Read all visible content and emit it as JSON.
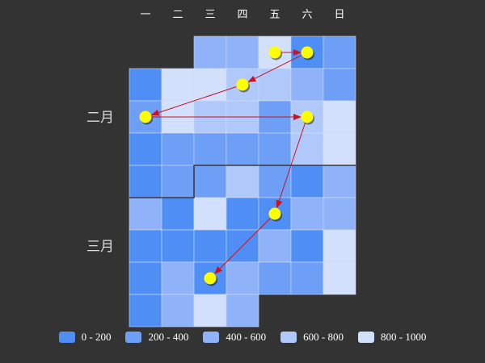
{
  "chart_data": {
    "type": "heatmap",
    "subtype": "calendar",
    "weekdays": [
      "一",
      "二",
      "三",
      "四",
      "五",
      "六",
      "日"
    ],
    "month_labels": [
      {
        "label": "二月",
        "week": 2
      },
      {
        "label": "三月",
        "week": 6
      }
    ],
    "start_weekday_index": 2,
    "weeks": 9,
    "values": [
      460,
      430,
      880,
      120,
      240,
      120,
      820,
      820,
      760,
      680,
      540,
      230,
      330,
      800,
      780,
      760,
      300,
      620,
      860,
      120,
      320,
      300,
      320,
      260,
      660,
      840,
      110,
      280,
      340,
      640,
      340,
      150,
      450,
      480,
      140,
      880,
      170,
      130,
      500,
      480,
      140,
      130,
      120,
      140,
      580,
      130,
      880,
      130,
      500,
      130,
      460,
      340,
      330,
      880,
      140,
      560,
      880,
      500
    ],
    "legend": [
      {
        "label": "0 - 200",
        "range": [
          0,
          200
        ],
        "color": "#4f8ff5"
      },
      {
        "label": "200 - 400",
        "range": [
          200,
          400
        ],
        "color": "#6e9ff6"
      },
      {
        "label": "400 - 600",
        "range": [
          400,
          600
        ],
        "color": "#8fb2f8"
      },
      {
        "label": "600 - 800",
        "range": [
          600,
          800
        ],
        "color": "#b1c9fa"
      },
      {
        "label": "800 - 1000",
        "range": [
          800,
          1000
        ],
        "color": "#d2e0fc"
      }
    ],
    "path_points": [
      {
        "week": 0,
        "weekday": 4
      },
      {
        "week": 0,
        "weekday": 5
      },
      {
        "week": 1,
        "weekday": 3
      },
      {
        "week": 2,
        "weekday": 0
      },
      {
        "week": 2,
        "weekday": 5
      },
      {
        "week": 5,
        "weekday": 4
      },
      {
        "week": 7,
        "weekday": 2
      }
    ],
    "colors": {
      "background": "#333333",
      "marker": "#ffff00",
      "arrow": "#cc1122",
      "text": "#ffffff",
      "cell_border": "#cfdcf0",
      "month_border": "#3a3a3a"
    }
  }
}
